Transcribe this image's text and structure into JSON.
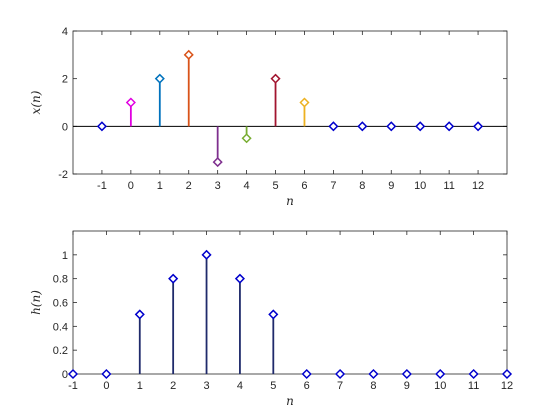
{
  "chart_data": [
    {
      "type": "stem",
      "xlabel": "n",
      "ylabel": "x(n)",
      "x": [
        -1,
        0,
        1,
        2,
        3,
        4,
        5,
        6,
        7,
        8,
        9,
        10,
        11,
        12
      ],
      "y": [
        0,
        1,
        2,
        3,
        -1.5,
        -0.5,
        2,
        1,
        0,
        0,
        0,
        0,
        0,
        0
      ],
      "colors": [
        "#0000cc",
        "#e000e0",
        "#0072bd",
        "#d95319",
        "#7e2f8e",
        "#77ac30",
        "#a2142f",
        "#edb120",
        "#0000cc",
        "#0000cc",
        "#0000cc",
        "#0000cc",
        "#0000cc",
        "#0000cc"
      ],
      "xlim": [
        -2,
        13
      ],
      "ylim": [
        -2,
        4
      ],
      "xticks": [
        -1,
        0,
        1,
        2,
        3,
        4,
        5,
        6,
        7,
        8,
        9,
        10,
        11,
        12
      ],
      "yticks": [
        -2,
        0,
        2,
        4
      ],
      "baseline": true,
      "marker": "diamond-open"
    },
    {
      "type": "stem",
      "xlabel": "n",
      "ylabel": "h(n)",
      "x": [
        -1,
        0,
        1,
        2,
        3,
        4,
        5,
        6,
        7,
        8,
        9,
        10,
        11,
        12
      ],
      "y": [
        0,
        0,
        0.5,
        0.8,
        1,
        0.8,
        0.5,
        0,
        0,
        0,
        0,
        0,
        0,
        0
      ],
      "colors": [
        "#0000cc",
        "#0000cc",
        "#0000cc",
        "#0000cc",
        "#0000cc",
        "#0000cc",
        "#0000cc",
        "#0000cc",
        "#0000cc",
        "#0000cc",
        "#0000cc",
        "#0000cc",
        "#0000cc",
        "#0000cc"
      ],
      "xlim": [
        -1,
        12
      ],
      "ylim": [
        0,
        1.2
      ],
      "xticks": [
        -1,
        0,
        1,
        2,
        3,
        4,
        5,
        6,
        7,
        8,
        9,
        10,
        11,
        12
      ],
      "yticks": [
        0,
        0.2,
        0.4,
        0.6,
        0.8,
        1
      ],
      "baseline": false,
      "marker": "diamond-open",
      "stem_color": "#1f2a6b"
    }
  ]
}
